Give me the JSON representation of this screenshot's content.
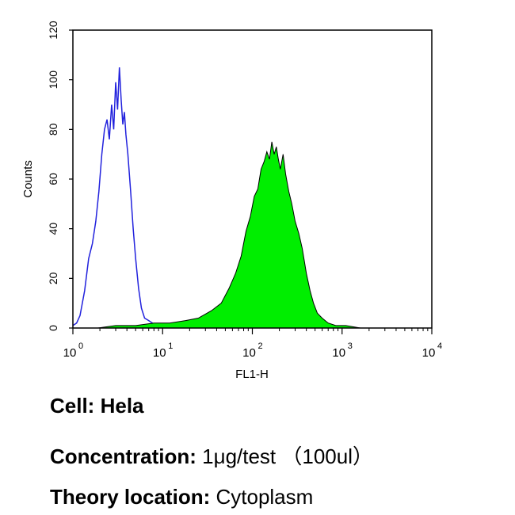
{
  "chart_data": {
    "type": "area",
    "title": "",
    "xlabel": "FL1-H",
    "ylabel": "Counts",
    "xscale": "log",
    "xlim": [
      1,
      10000
    ],
    "ylim": [
      0,
      120
    ],
    "y_ticks": [
      0,
      20,
      40,
      60,
      80,
      100,
      120
    ],
    "x_ticks": [
      {
        "value": 1,
        "base": "10",
        "exp": "0"
      },
      {
        "value": 10,
        "base": "10",
        "exp": "1"
      },
      {
        "value": 100,
        "base": "10",
        "exp": "2"
      },
      {
        "value": 1000,
        "base": "10",
        "exp": "3"
      },
      {
        "value": 10000,
        "base": "10",
        "exp": "4"
      }
    ],
    "grid": false,
    "legend": "none",
    "series": [
      {
        "style": "outline",
        "color": "#2222dd",
        "points": [
          [
            1.0,
            1
          ],
          [
            1.1,
            2
          ],
          [
            1.2,
            5
          ],
          [
            1.35,
            15
          ],
          [
            1.5,
            28
          ],
          [
            1.65,
            34
          ],
          [
            1.8,
            43
          ],
          [
            1.95,
            55
          ],
          [
            2.1,
            70
          ],
          [
            2.25,
            80
          ],
          [
            2.4,
            84
          ],
          [
            2.55,
            76
          ],
          [
            2.7,
            90
          ],
          [
            2.85,
            80
          ],
          [
            3.0,
            99
          ],
          [
            3.15,
            88
          ],
          [
            3.3,
            105
          ],
          [
            3.45,
            92
          ],
          [
            3.6,
            82
          ],
          [
            3.75,
            87
          ],
          [
            3.9,
            78
          ],
          [
            4.1,
            70
          ],
          [
            4.4,
            55
          ],
          [
            4.7,
            40
          ],
          [
            5.0,
            28
          ],
          [
            5.4,
            16
          ],
          [
            5.8,
            8
          ],
          [
            6.3,
            4
          ],
          [
            7.0,
            3
          ],
          [
            7.7,
            2
          ],
          [
            8.5,
            1
          ],
          [
            9.5,
            0
          ]
        ]
      },
      {
        "style": "filled",
        "color": "#00ee00",
        "points": [
          [
            1.9,
            0
          ],
          [
            3.0,
            1
          ],
          [
            5.0,
            1
          ],
          [
            8.0,
            2
          ],
          [
            12,
            2
          ],
          [
            18,
            3
          ],
          [
            25,
            4
          ],
          [
            35,
            7
          ],
          [
            45,
            10
          ],
          [
            55,
            16
          ],
          [
            65,
            22
          ],
          [
            75,
            29
          ],
          [
            85,
            39
          ],
          [
            95,
            45
          ],
          [
            105,
            53
          ],
          [
            115,
            56
          ],
          [
            125,
            64
          ],
          [
            135,
            67
          ],
          [
            145,
            71
          ],
          [
            155,
            68
          ],
          [
            165,
            75
          ],
          [
            175,
            70
          ],
          [
            185,
            73
          ],
          [
            195,
            68
          ],
          [
            205,
            64
          ],
          [
            220,
            70
          ],
          [
            235,
            62
          ],
          [
            255,
            55
          ],
          [
            275,
            50
          ],
          [
            300,
            43
          ],
          [
            330,
            38
          ],
          [
            360,
            32
          ],
          [
            400,
            22
          ],
          [
            440,
            15
          ],
          [
            480,
            10
          ],
          [
            530,
            6
          ],
          [
            600,
            4
          ],
          [
            700,
            2
          ],
          [
            850,
            1
          ],
          [
            1100,
            1
          ],
          [
            1600,
            0
          ]
        ]
      }
    ]
  },
  "info": {
    "cell_label": "Cell:",
    "cell_value": "Hela",
    "concentration_label": "Concentration:",
    "concentration_value": "1μg/test （100ul）",
    "location_label": "Theory location:",
    "location_value": "Cytoplasm"
  }
}
